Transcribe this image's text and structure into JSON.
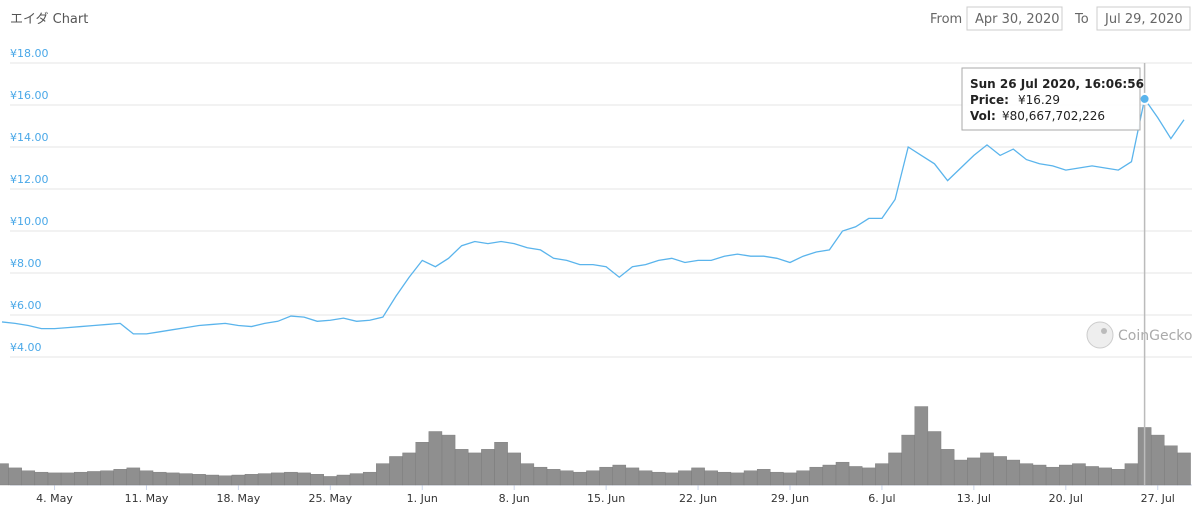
{
  "header": {
    "title": "エイダ Chart",
    "from_label": "From",
    "from": "Apr 30, 2020",
    "to_label": "To",
    "to": "Jul 29, 2020"
  },
  "watermark": "CoinGecko",
  "tooltip": {
    "title": "Sun 26 Jul 2020, 16:06:56",
    "price_label": "Price:",
    "price": "¥16.29",
    "vol_label": "Vol:",
    "vol": "¥80,667,702,226"
  },
  "chart_data": {
    "type": "line",
    "x": [
      "2020-04-30",
      "2020-05-01",
      "2020-05-02",
      "2020-05-03",
      "2020-05-04",
      "2020-05-05",
      "2020-05-06",
      "2020-05-07",
      "2020-05-08",
      "2020-05-09",
      "2020-05-10",
      "2020-05-11",
      "2020-05-12",
      "2020-05-13",
      "2020-05-14",
      "2020-05-15",
      "2020-05-16",
      "2020-05-17",
      "2020-05-18",
      "2020-05-19",
      "2020-05-20",
      "2020-05-21",
      "2020-05-22",
      "2020-05-23",
      "2020-05-24",
      "2020-05-25",
      "2020-05-26",
      "2020-05-27",
      "2020-05-28",
      "2020-05-29",
      "2020-05-30",
      "2020-05-31",
      "2020-06-01",
      "2020-06-02",
      "2020-06-03",
      "2020-06-04",
      "2020-06-05",
      "2020-06-06",
      "2020-06-07",
      "2020-06-08",
      "2020-06-09",
      "2020-06-10",
      "2020-06-11",
      "2020-06-12",
      "2020-06-13",
      "2020-06-14",
      "2020-06-15",
      "2020-06-16",
      "2020-06-17",
      "2020-06-18",
      "2020-06-19",
      "2020-06-20",
      "2020-06-21",
      "2020-06-22",
      "2020-06-23",
      "2020-06-24",
      "2020-06-25",
      "2020-06-26",
      "2020-06-27",
      "2020-06-28",
      "2020-06-29",
      "2020-06-30",
      "2020-07-01",
      "2020-07-02",
      "2020-07-03",
      "2020-07-04",
      "2020-07-05",
      "2020-07-06",
      "2020-07-07",
      "2020-07-08",
      "2020-07-09",
      "2020-07-10",
      "2020-07-11",
      "2020-07-12",
      "2020-07-13",
      "2020-07-14",
      "2020-07-15",
      "2020-07-16",
      "2020-07-17",
      "2020-07-18",
      "2020-07-19",
      "2020-07-20",
      "2020-07-21",
      "2020-07-22",
      "2020-07-23",
      "2020-07-24",
      "2020-07-25",
      "2020-07-26",
      "2020-07-27",
      "2020-07-28",
      "2020-07-29"
    ],
    "series": [
      {
        "type": "line",
        "color": "#5ab4ec",
        "values": [
          5.67,
          5.6,
          5.5,
          5.35,
          5.35,
          5.4,
          5.45,
          5.5,
          5.55,
          5.6,
          5.1,
          5.1,
          5.2,
          5.3,
          5.4,
          5.5,
          5.55,
          5.6,
          5.5,
          5.45,
          5.6,
          5.7,
          5.95,
          5.9,
          5.7,
          5.75,
          5.85,
          5.7,
          5.75,
          5.9,
          6.9,
          7.8,
          8.6,
          8.3,
          8.7,
          9.3,
          9.5,
          9.4,
          9.5,
          9.4,
          9.2,
          9.1,
          8.7,
          8.6,
          8.4,
          8.4,
          8.3,
          7.8,
          8.3,
          8.4,
          8.6,
          8.7,
          8.5,
          8.6,
          8.6,
          8.8,
          8.9,
          8.8,
          8.8,
          8.7,
          8.5,
          8.8,
          9.0,
          9.1,
          10.0,
          10.2,
          10.6,
          10.6,
          11.5,
          14.0,
          13.6,
          13.2,
          12.4,
          13.0,
          13.6,
          14.1,
          13.6,
          13.9,
          13.4,
          13.2,
          13.1,
          12.9,
          13.0,
          13.1,
          13.0,
          12.9,
          13.3,
          16.29,
          15.4,
          14.4,
          15.3
        ]
      },
      {
        "type": "bar",
        "axis": "y2",
        "color": "#8f8f8f",
        "values": [
          30000000000,
          24000000000,
          20000000000,
          18000000000,
          17000000000,
          17000000000,
          18000000000,
          19000000000,
          20000000000,
          22000000000,
          24000000000,
          20000000000,
          18000000000,
          17000000000,
          16000000000,
          15000000000,
          14000000000,
          13000000000,
          14000000000,
          15000000000,
          16000000000,
          17000000000,
          18000000000,
          17000000000,
          15000000000,
          12000000000,
          14000000000,
          16000000000,
          18000000000,
          30000000000,
          40000000000,
          45000000000,
          60000000000,
          75000000000,
          70000000000,
          50000000000,
          45000000000,
          50000000000,
          60000000000,
          45000000000,
          30000000000,
          25000000000,
          22000000000,
          20000000000,
          18000000000,
          20000000000,
          25000000000,
          28000000000,
          24000000000,
          20000000000,
          18000000000,
          17000000000,
          20000000000,
          24000000000,
          20000000000,
          18000000000,
          17000000000,
          20000000000,
          22000000000,
          18000000000,
          17000000000,
          20000000000,
          25000000000,
          28000000000,
          32000000000,
          26000000000,
          24000000000,
          30000000000,
          45000000000,
          70000000000,
          110000000000,
          75000000000,
          50000000000,
          35000000000,
          38000000000,
          45000000000,
          40000000000,
          35000000000,
          30000000000,
          28000000000,
          25000000000,
          28000000000,
          30000000000,
          26000000000,
          24000000000,
          22000000000,
          30000000000,
          80667702226,
          70000000000,
          55000000000,
          45000000000
        ]
      }
    ],
    "xlim": [
      "2020-04-30",
      "2020-07-29"
    ],
    "xticks": [
      {
        "value": "2020-05-04",
        "label": "4. May"
      },
      {
        "value": "2020-05-11",
        "label": "11. May"
      },
      {
        "value": "2020-05-18",
        "label": "18. May"
      },
      {
        "value": "2020-05-25",
        "label": "25. May"
      },
      {
        "value": "2020-06-01",
        "label": "1. Jun"
      },
      {
        "value": "2020-06-08",
        "label": "8. Jun"
      },
      {
        "value": "2020-06-15",
        "label": "15. Jun"
      },
      {
        "value": "2020-06-22",
        "label": "22. Jun"
      },
      {
        "value": "2020-06-29",
        "label": "29. Jun"
      },
      {
        "value": "2020-07-06",
        "label": "6. Jul"
      },
      {
        "value": "2020-07-13",
        "label": "13. Jul"
      },
      {
        "value": "2020-07-20",
        "label": "20. Jul"
      },
      {
        "value": "2020-07-27",
        "label": "27. Jul"
      }
    ],
    "ylim": [
      4,
      18
    ],
    "yticks": [
      {
        "value": 4,
        "label": "¥4.00"
      },
      {
        "value": 6,
        "label": "¥6.00"
      },
      {
        "value": 8,
        "label": "¥8.00"
      },
      {
        "value": 10,
        "label": "¥10.00"
      },
      {
        "value": 12,
        "label": "¥12.00"
      },
      {
        "value": 14,
        "label": "¥14.00"
      },
      {
        "value": 16,
        "label": "¥16.00"
      },
      {
        "value": 18,
        "label": "¥18.00"
      }
    ],
    "y2lim": [
      0,
      150000000000
    ],
    "grid": true
  }
}
